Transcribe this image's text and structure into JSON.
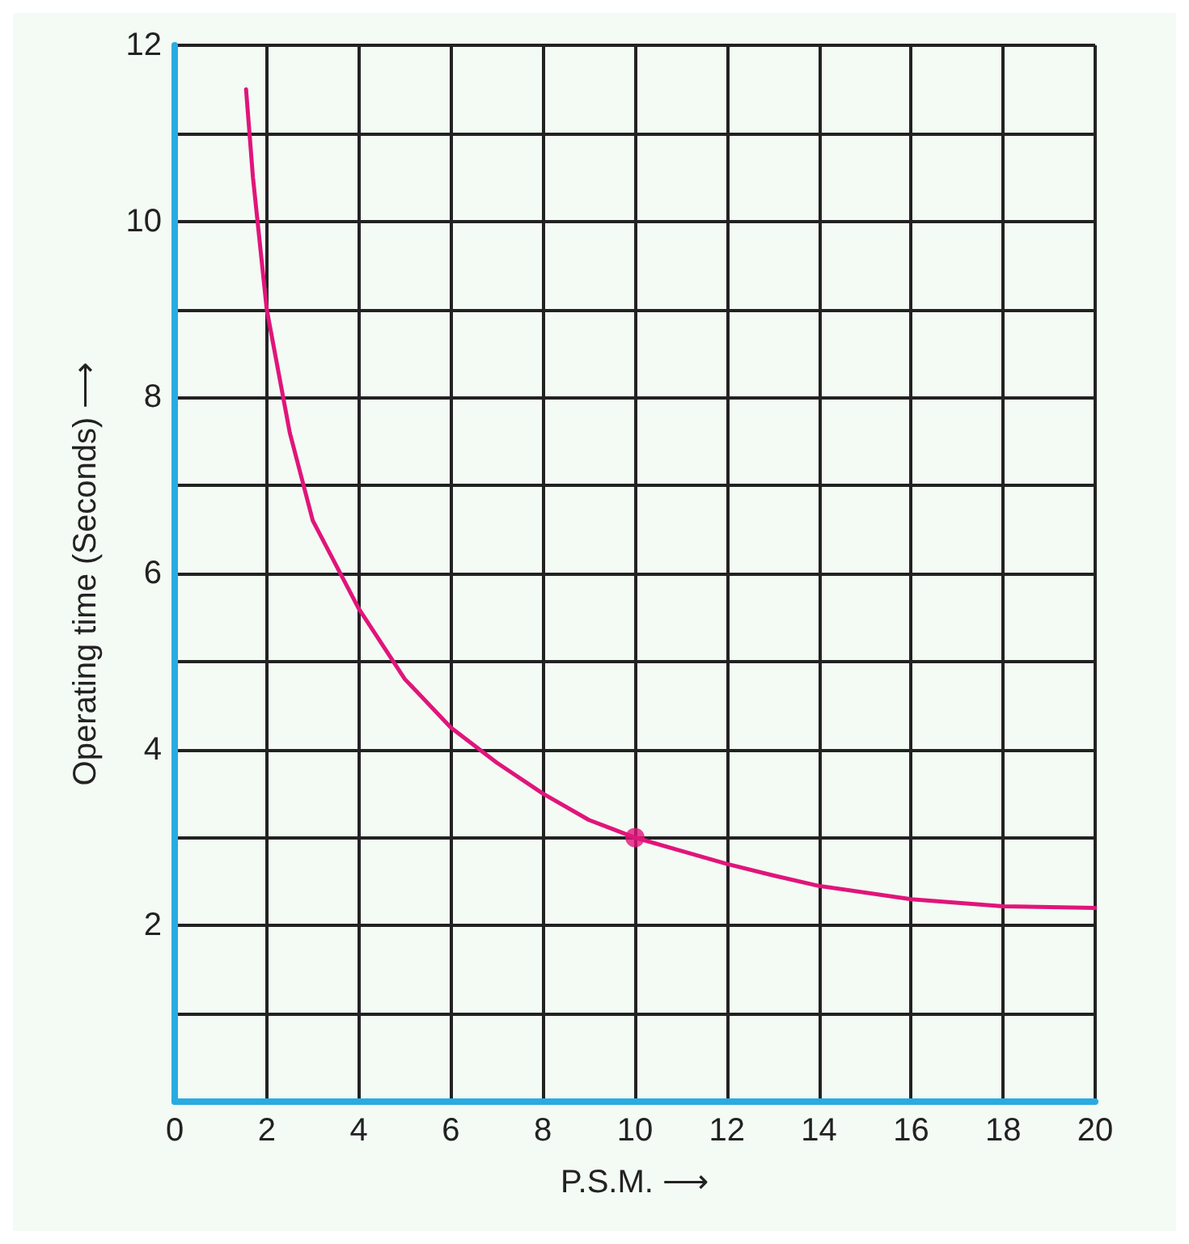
{
  "chart_data": {
    "type": "line",
    "xlabel": "P.S.M. ⟶",
    "ylabel": "Operating time (Seconds) ⟶",
    "xlim": [
      0,
      20
    ],
    "xticks": [
      0,
      2,
      4,
      6,
      8,
      10,
      12,
      14,
      16,
      18,
      20
    ],
    "ylim": [
      0,
      12
    ],
    "yticks": [
      {
        "value": 0,
        "label": null
      },
      {
        "value": 1,
        "label": null
      },
      2,
      {
        "value": 3,
        "label": null
      },
      4,
      {
        "value": 5,
        "label": null
      },
      6,
      {
        "value": 7,
        "label": null
      },
      8,
      {
        "value": 9,
        "label": null
      },
      10,
      {
        "value": 11,
        "label": null
      },
      12
    ],
    "grid": true,
    "series": [
      {
        "color": "#e0157a",
        "marker": "none",
        "line_style": "solid",
        "x": [
          1.55,
          1.7,
          2,
          2.5,
          3,
          4,
          5,
          6,
          7,
          8,
          9,
          10,
          11,
          12,
          13,
          14,
          16,
          18,
          20
        ],
        "values": [
          11.5,
          10.5,
          9.0,
          7.6,
          6.6,
          5.6,
          4.8,
          4.25,
          3.85,
          3.5,
          3.2,
          3.0,
          2.85,
          2.7,
          2.57,
          2.45,
          2.3,
          2.22,
          2.2
        ]
      },
      {
        "type": "scatter",
        "color": "#e0157a",
        "marker": "circle",
        "x": [
          10
        ],
        "values": [
          3
        ]
      }
    ]
  }
}
